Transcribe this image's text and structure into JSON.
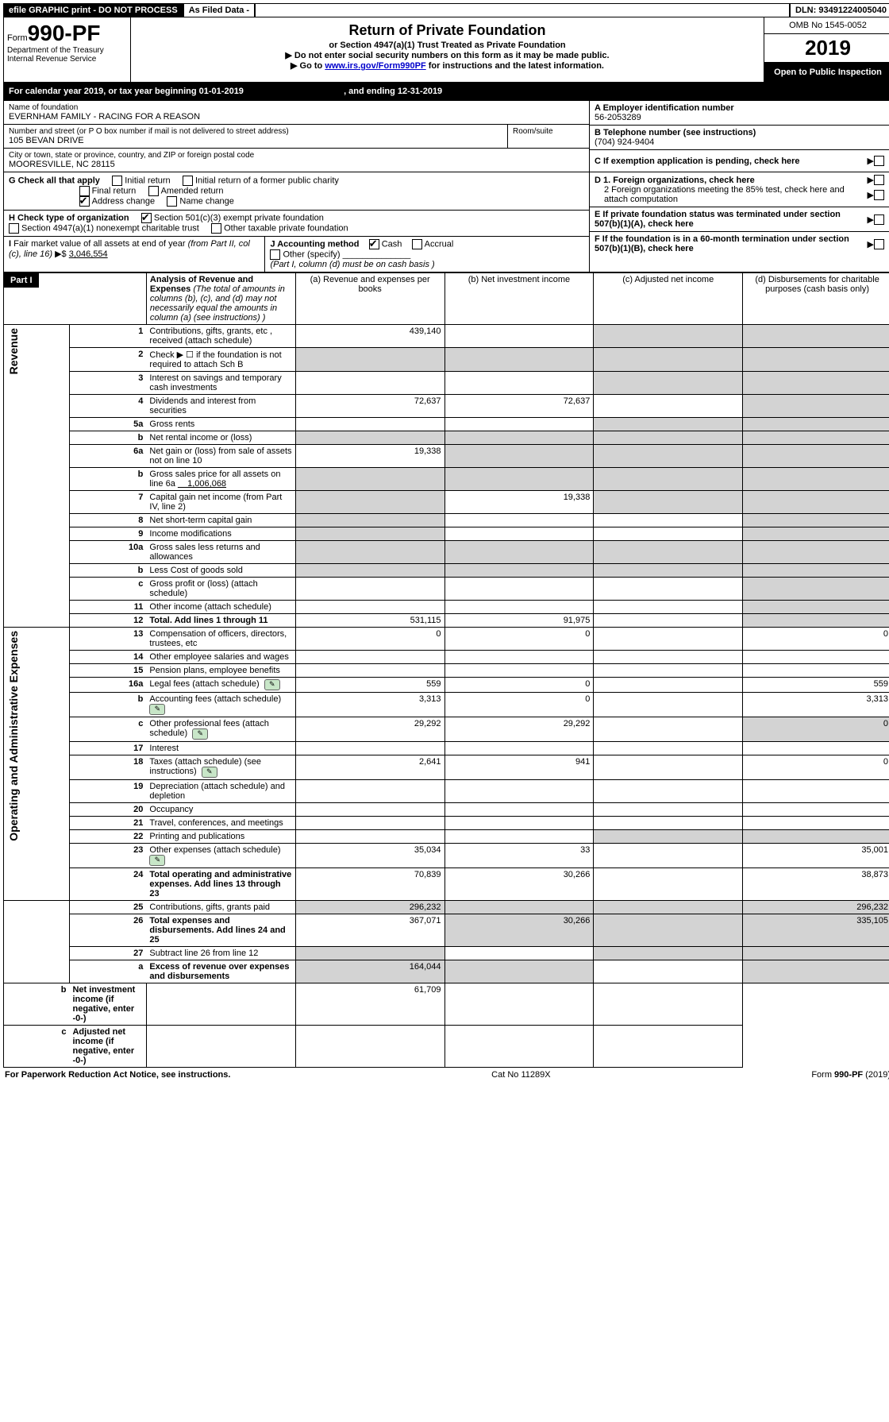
{
  "topbar": {
    "efile": "efile GRAPHIC print - DO NOT PROCESS",
    "asfiled": "As Filed Data -",
    "dln": "DLN: 93491224005040"
  },
  "header": {
    "form_prefix": "Form",
    "form_no": "990-PF",
    "dept": "Department of the Treasury",
    "irs": "Internal Revenue Service",
    "title": "Return of Private Foundation",
    "subtitle": "or Section 4947(a)(1) Trust Treated as Private Foundation",
    "warn1": "▶ Do not enter social security numbers on this form as it may be made public.",
    "warn2_pre": "▶ Go to ",
    "warn2_link": "www.irs.gov/Form990PF",
    "warn2_post": " for instructions and the latest information.",
    "omb": "OMB No 1545-0052",
    "year": "2019",
    "open": "Open to Public Inspection"
  },
  "calendar": {
    "label_pre": "For calendar year 2019, or tax year beginning ",
    "begin": "01-01-2019",
    "label_mid": ", and ending ",
    "end": "12-31-2019"
  },
  "ident": {
    "name_label": "Name of foundation",
    "name": "EVERNHAM FAMILY - RACING FOR A REASON",
    "addr_label": "Number and street (or P O  box number if mail is not delivered to street address)",
    "room_label": "Room/suite",
    "addr": "105 BEVAN DRIVE",
    "city_label": "City or town, state or province, country, and ZIP or foreign postal code",
    "city": "MOORESVILLE, NC  28115",
    "A_label": "A Employer identification number",
    "A_val": "56-2053289",
    "B_label": "B Telephone number (see instructions)",
    "B_val": "(704) 924-9404",
    "C_label": "C If exemption application is pending, check here",
    "D1": "D 1. Foreign organizations, check here",
    "D2": "2 Foreign organizations meeting the 85% test, check here and attach computation",
    "E": "E  If private foundation status was terminated under section 507(b)(1)(A), check here",
    "F": "F  If the foundation is in a 60-month termination under section 507(b)(1)(B), check here"
  },
  "G": {
    "label": "G Check all that apply",
    "opt1": "Initial return",
    "opt2": "Initial return of a former public charity",
    "opt3": "Final return",
    "opt4": "Amended return",
    "opt5": "Address change",
    "opt6": "Name change"
  },
  "H": {
    "label": "H Check type of organization",
    "opt1": "Section 501(c)(3) exempt private foundation",
    "opt2": "Section 4947(a)(1) nonexempt charitable trust",
    "opt3": "Other taxable private foundation"
  },
  "I": {
    "label": "I Fair market value of all assets at end of year (from Part II, col  (c), line 16) ▶$ ",
    "value": "3,046,554"
  },
  "J": {
    "label": "J Accounting method",
    "cash": "Cash",
    "accrual": "Accrual",
    "other": "Other (specify)",
    "note": "(Part I, column (d) must be on cash basis )"
  },
  "part1": {
    "label": "Part I",
    "heading": "Analysis of Revenue and Expenses",
    "heading_note": " (The total of amounts in columns (b), (c), and (d) may not necessarily equal the amounts in column (a) (see instructions) )",
    "col_a": "(a)  Revenue and expenses per books",
    "col_b": "(b)  Net investment income",
    "col_c": "(c)  Adjusted net income",
    "col_d": "(d)  Disbursements for charitable purposes (cash basis only)"
  },
  "sections": {
    "rev": "Revenue",
    "exp": "Operating and Administrative Expenses"
  },
  "rows": [
    {
      "n": "1",
      "d": "Contributions, gifts, grants, etc , received (attach schedule)",
      "a": "439,140",
      "b": "",
      "c": "",
      "dd": ""
    },
    {
      "n": "2",
      "d": "Check ▶ ☐ if the foundation is not required to attach Sch B",
      "a": "",
      "b": "",
      "c": "",
      "dd": ""
    },
    {
      "n": "3",
      "d": "Interest on savings and temporary cash investments",
      "a": "",
      "b": "",
      "c": "",
      "dd": ""
    },
    {
      "n": "4",
      "d": "Dividends and interest from securities",
      "a": "72,637",
      "b": "72,637",
      "c": "",
      "dd": ""
    },
    {
      "n": "5a",
      "d": "Gross rents",
      "a": "",
      "b": "",
      "c": "",
      "dd": ""
    },
    {
      "n": "b",
      "d": "Net rental income or (loss)",
      "a": "",
      "b": "",
      "c": "",
      "dd": ""
    },
    {
      "n": "6a",
      "d": "Net gain or (loss) from sale of assets not on line 10",
      "a": "19,338",
      "b": "",
      "c": "",
      "dd": ""
    },
    {
      "n": "b",
      "d": "Gross sales price for all assets on line 6a",
      "extra": "1,006,068",
      "a": "",
      "b": "",
      "c": "",
      "dd": ""
    },
    {
      "n": "7",
      "d": "Capital gain net income (from Part IV, line 2)",
      "a": "",
      "b": "19,338",
      "c": "",
      "dd": ""
    },
    {
      "n": "8",
      "d": "Net short-term capital gain",
      "a": "",
      "b": "",
      "c": "",
      "dd": ""
    },
    {
      "n": "9",
      "d": "Income modifications",
      "a": "",
      "b": "",
      "c": "",
      "dd": ""
    },
    {
      "n": "10a",
      "d": "Gross sales less returns and allowances",
      "a": "",
      "b": "",
      "c": "",
      "dd": ""
    },
    {
      "n": "b",
      "d": "Less  Cost of goods sold",
      "a": "",
      "b": "",
      "c": "",
      "dd": ""
    },
    {
      "n": "c",
      "d": "Gross profit or (loss) (attach schedule)",
      "a": "",
      "b": "",
      "c": "",
      "dd": ""
    },
    {
      "n": "11",
      "d": "Other income (attach schedule)",
      "a": "",
      "b": "",
      "c": "",
      "dd": ""
    },
    {
      "n": "12",
      "d": "Total. Add lines 1 through 11",
      "bold": true,
      "a": "531,115",
      "b": "91,975",
      "c": "",
      "dd": ""
    },
    {
      "n": "13",
      "d": "Compensation of officers, directors, trustees, etc",
      "a": "0",
      "b": "0",
      "c": "",
      "dd": "0"
    },
    {
      "n": "14",
      "d": "Other employee salaries and wages",
      "a": "",
      "b": "",
      "c": "",
      "dd": ""
    },
    {
      "n": "15",
      "d": "Pension plans, employee benefits",
      "a": "",
      "b": "",
      "c": "",
      "dd": ""
    },
    {
      "n": "16a",
      "d": "Legal fees (attach schedule)",
      "icon": true,
      "a": "559",
      "b": "0",
      "c": "",
      "dd": "559"
    },
    {
      "n": "b",
      "d": "Accounting fees (attach schedule)",
      "icon": true,
      "a": "3,313",
      "b": "0",
      "c": "",
      "dd": "3,313"
    },
    {
      "n": "c",
      "d": "Other professional fees (attach schedule)",
      "icon": true,
      "a": "29,292",
      "b": "29,292",
      "c": "",
      "dd": "0"
    },
    {
      "n": "17",
      "d": "Interest",
      "a": "",
      "b": "",
      "c": "",
      "dd": ""
    },
    {
      "n": "18",
      "d": "Taxes (attach schedule) (see instructions)",
      "icon": true,
      "a": "2,641",
      "b": "941",
      "c": "",
      "dd": "0"
    },
    {
      "n": "19",
      "d": "Depreciation (attach schedule) and depletion",
      "a": "",
      "b": "",
      "c": "",
      "dd": ""
    },
    {
      "n": "20",
      "d": "Occupancy",
      "a": "",
      "b": "",
      "c": "",
      "dd": ""
    },
    {
      "n": "21",
      "d": "Travel, conferences, and meetings",
      "a": "",
      "b": "",
      "c": "",
      "dd": ""
    },
    {
      "n": "22",
      "d": "Printing and publications",
      "a": "",
      "b": "",
      "c": "",
      "dd": ""
    },
    {
      "n": "23",
      "d": "Other expenses (attach schedule)",
      "icon": true,
      "a": "35,034",
      "b": "33",
      "c": "",
      "dd": "35,001"
    },
    {
      "n": "24",
      "d": "Total operating and administrative expenses. Add lines 13 through 23",
      "bold": true,
      "a": "70,839",
      "b": "30,266",
      "c": "",
      "dd": "38,873"
    },
    {
      "n": "25",
      "d": "Contributions, gifts, grants paid",
      "a": "296,232",
      "b": "",
      "c": "",
      "dd": "296,232"
    },
    {
      "n": "26",
      "d": "Total expenses and disbursements. Add lines 24 and 25",
      "bold": true,
      "a": "367,071",
      "b": "30,266",
      "c": "",
      "dd": "335,105"
    },
    {
      "n": "27",
      "d": "Subtract line 26 from line 12",
      "a": "",
      "b": "",
      "c": "",
      "dd": ""
    },
    {
      "n": "a",
      "d": "Excess of revenue over expenses and disbursements",
      "bold": true,
      "a": "164,044",
      "b": "",
      "c": "",
      "dd": ""
    },
    {
      "n": "b",
      "d": "Net investment income (if negative, enter -0-)",
      "bold": true,
      "a": "",
      "b": "61,709",
      "c": "",
      "dd": ""
    },
    {
      "n": "c",
      "d": "Adjusted net income (if negative, enter -0-)",
      "bold": true,
      "a": "",
      "b": "",
      "c": "",
      "dd": ""
    }
  ],
  "footer": {
    "left": "For Paperwork Reduction Act Notice, see instructions.",
    "mid": "Cat  No  11289X",
    "right": "Form 990-PF (2019)"
  },
  "colors": {
    "shade": "#d3d3d3",
    "icon_bg": "#c8e6c8",
    "link": "#0000cc"
  }
}
